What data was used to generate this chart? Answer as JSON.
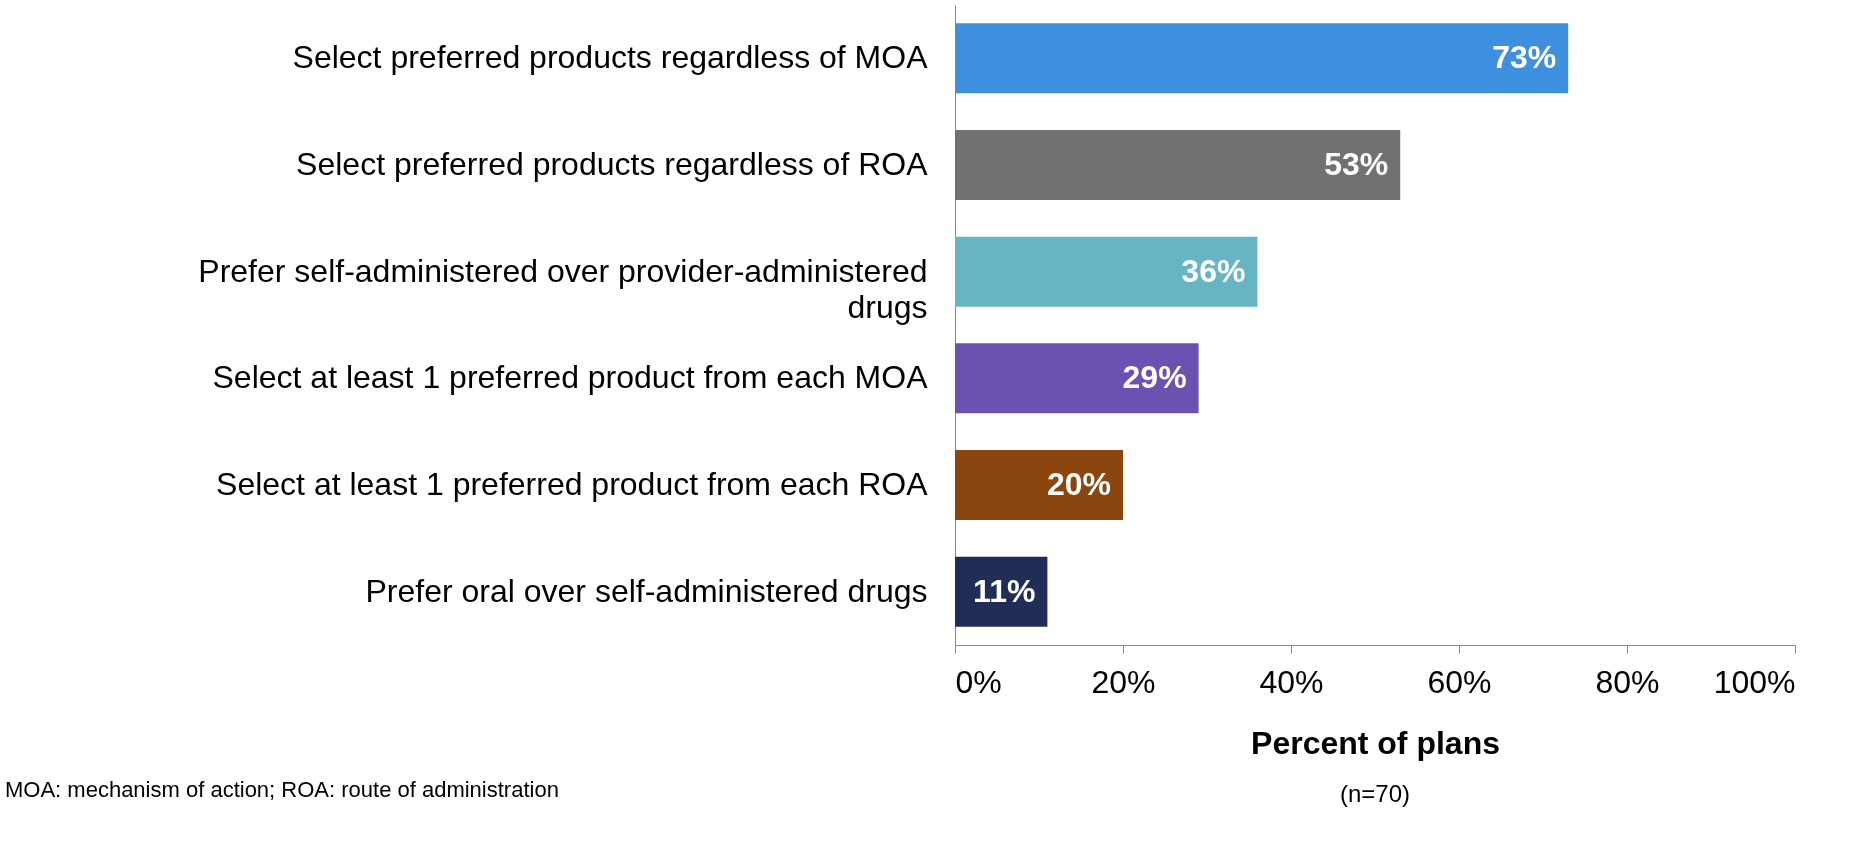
{
  "chart_data": {
    "type": "bar",
    "orientation": "horizontal",
    "categories": [
      "Select preferred products regardless of MOA",
      "Select preferred products regardless of ROA",
      "Prefer self-administered over provider-administered drugs",
      "Select at least 1 preferred product from each MOA",
      "Select at least 1 preferred product from each ROA",
      "Prefer oral over self-administered drugs"
    ],
    "values": [
      73,
      53,
      36,
      29,
      20,
      11
    ],
    "colors": [
      "#3f8fdf",
      "#717171",
      "#67b4c2",
      "#6b52b0",
      "#8b450f",
      "#1f2d57"
    ],
    "value_labels": [
      "73%",
      "53%",
      "36%",
      "29%",
      "20%",
      "11%"
    ],
    "xlim": [
      0,
      100
    ],
    "xticks": [
      {
        "value": 0,
        "label": "0%"
      },
      {
        "value": 20,
        "label": "20%"
      },
      {
        "value": 40,
        "label": "40%"
      },
      {
        "value": 60,
        "label": "60%"
      },
      {
        "value": 80,
        "label": "80%"
      },
      {
        "value": 100,
        "label": "100%"
      }
    ],
    "xlabel": "Percent of plans",
    "annotations": [
      "(n=70)",
      "MOA: mechanism of action; ROA: route of administration"
    ],
    "grid": false
  }
}
